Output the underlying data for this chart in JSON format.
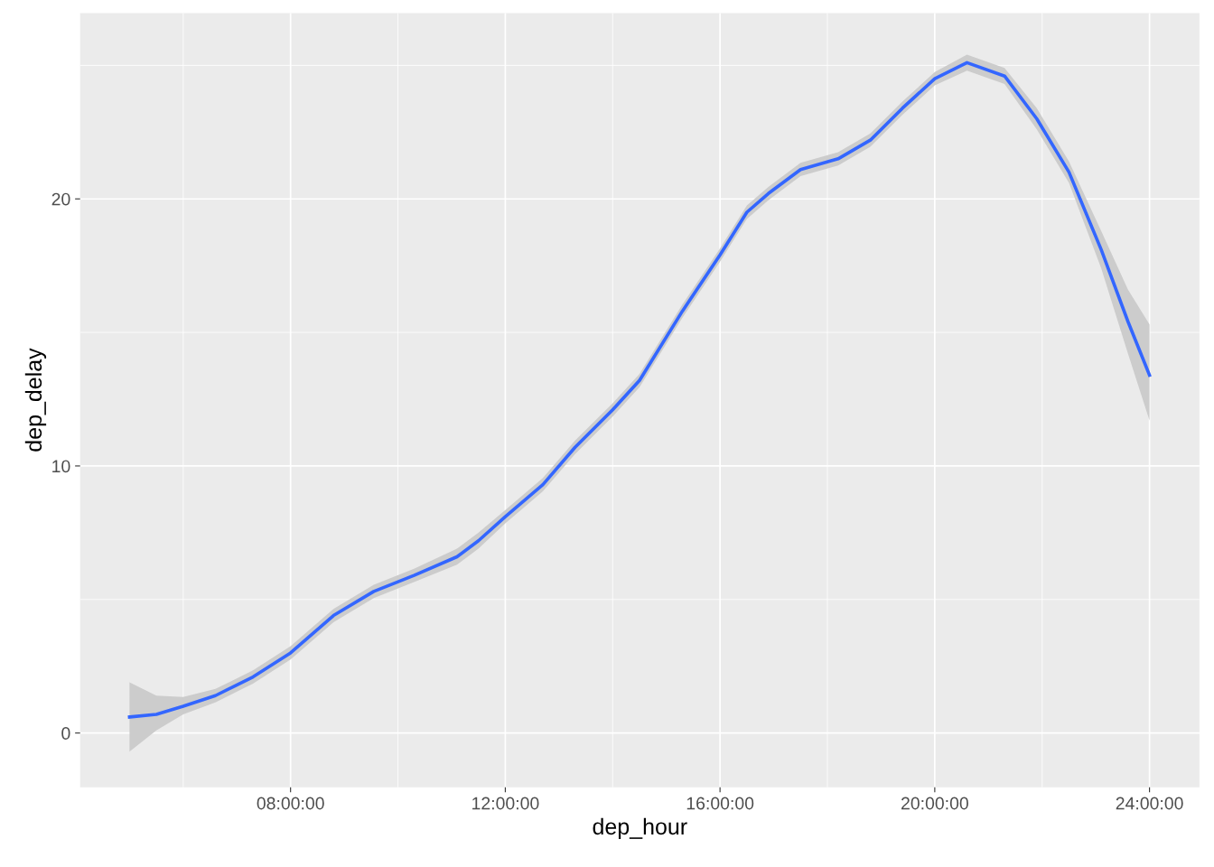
{
  "chart_data": {
    "type": "line",
    "xlabel": "dep_hour",
    "ylabel": "dep_delay",
    "xlim": [
      4.08,
      24.93
    ],
    "ylim": [
      -2.03,
      26.96
    ],
    "xticks": [
      {
        "value": 8,
        "label": "08:00:00"
      },
      {
        "value": 12,
        "label": "12:00:00"
      },
      {
        "value": 16,
        "label": "16:00:00"
      },
      {
        "value": 20,
        "label": "20:00:00"
      },
      {
        "value": 24,
        "label": "24:00:00"
      }
    ],
    "yticks": [
      0,
      10,
      20
    ],
    "grid": true,
    "series": [
      {
        "color": "#3366ff",
        "x": [
          5.0,
          5.5,
          6.0,
          6.6,
          7.3,
          8.0,
          8.8,
          9.55,
          10.3,
          11.1,
          11.5,
          12.0,
          12.7,
          13.3,
          14.0,
          14.5,
          15.3,
          16.0,
          16.5,
          16.9,
          17.5,
          18.2,
          18.8,
          19.4,
          20.0,
          20.6,
          21.3,
          21.9,
          22.5,
          23.1,
          23.6,
          24.0
        ],
        "values": [
          0.6,
          0.7,
          1.0,
          1.4,
          2.1,
          3.0,
          4.4,
          5.3,
          5.9,
          6.6,
          7.2,
          8.1,
          9.3,
          10.7,
          12.1,
          13.2,
          15.8,
          17.9,
          19.5,
          20.2,
          21.1,
          21.5,
          22.2,
          23.4,
          24.5,
          25.1,
          24.6,
          23.0,
          21.0,
          18.1,
          15.4,
          13.4
        ],
        "lower": [
          -0.7,
          0.1,
          0.7,
          1.15,
          1.85,
          2.75,
          4.15,
          5.05,
          5.65,
          6.3,
          6.9,
          7.85,
          9.05,
          10.45,
          11.85,
          12.95,
          15.55,
          17.65,
          19.25,
          19.95,
          20.85,
          21.25,
          21.95,
          23.15,
          24.25,
          24.8,
          24.3,
          22.6,
          20.6,
          17.4,
          14.2,
          11.7
        ],
        "upper": [
          1.9,
          1.4,
          1.35,
          1.65,
          2.35,
          3.25,
          4.65,
          5.55,
          6.15,
          6.9,
          7.5,
          8.35,
          9.55,
          10.95,
          12.35,
          13.45,
          16.05,
          18.15,
          19.75,
          20.45,
          21.35,
          21.75,
          22.45,
          23.65,
          24.75,
          25.4,
          24.9,
          23.4,
          21.4,
          18.8,
          16.6,
          15.3
        ]
      }
    ]
  }
}
